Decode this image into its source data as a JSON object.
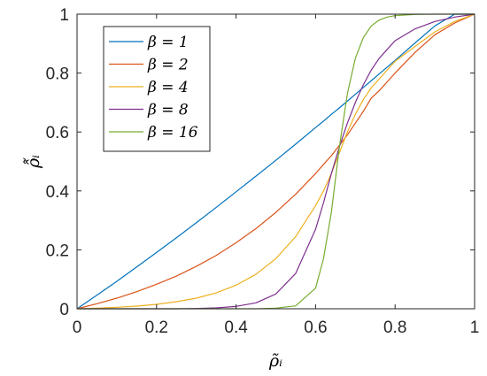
{
  "chart_data": {
    "type": "line",
    "xlabel": "ρ̃ᵢ",
    "ylabel": "ρ̂̃ᵢ",
    "xlim": [
      0,
      1
    ],
    "ylim": [
      0,
      1
    ],
    "xticks": [
      0,
      0.2,
      0.4,
      0.6,
      0.8,
      1
    ],
    "yticks": [
      0,
      0.2,
      0.4,
      0.6,
      0.8,
      1
    ],
    "xtick_labels": [
      "0",
      "0.2",
      "0.4",
      "0.6",
      "0.8",
      "1"
    ],
    "ytick_labels": [
      "0",
      "0.2",
      "0.4",
      "0.6",
      "0.8",
      "1"
    ],
    "grid": false,
    "legend_position": "top-left",
    "x": [
      0,
      0.05,
      0.1,
      0.15,
      0.2,
      0.25,
      0.3,
      0.35,
      0.4,
      0.45,
      0.5,
      0.55,
      0.6,
      0.62,
      0.64,
      0.66,
      0.68,
      0.7,
      0.72,
      0.74,
      0.76,
      0.78,
      0.8,
      0.85,
      0.9,
      0.95,
      1
    ],
    "series": [
      {
        "name": "β = 1",
        "color": "#0072BD",
        "values": [
          0,
          0.046,
          0.093,
          0.142,
          0.191,
          0.241,
          0.292,
          0.344,
          0.397,
          0.45,
          0.504,
          0.559,
          0.615,
          0.637,
          0.66,
          0.682,
          0.705,
          0.728,
          0.751,
          0.774,
          0.797,
          0.82,
          0.843,
          0.902,
          0.96,
          1.0,
          1.0
        ]
      },
      {
        "name": "β = 2",
        "color": "#D95319",
        "values": [
          0,
          0.017,
          0.036,
          0.058,
          0.083,
          0.111,
          0.144,
          0.181,
          0.224,
          0.272,
          0.327,
          0.389,
          0.459,
          0.49,
          0.52,
          0.555,
          0.59,
          0.63,
          0.67,
          0.715,
          0.74,
          0.77,
          0.8,
          0.87,
          0.93,
          0.97,
          1.0
        ]
      },
      {
        "name": "β = 4",
        "color": "#EDB120",
        "values": [
          0,
          0.002,
          0.005,
          0.009,
          0.015,
          0.024,
          0.036,
          0.054,
          0.08,
          0.117,
          0.17,
          0.245,
          0.35,
          0.4,
          0.46,
          0.53,
          0.6,
          0.66,
          0.71,
          0.75,
          0.78,
          0.81,
          0.84,
          0.89,
          0.94,
          0.975,
          1.0
        ]
      },
      {
        "name": "β = 8",
        "color": "#7E2F8E",
        "values": [
          0,
          0,
          0,
          0,
          0,
          0,
          0.001,
          0.003,
          0.008,
          0.02,
          0.05,
          0.12,
          0.27,
          0.36,
          0.46,
          0.55,
          0.63,
          0.7,
          0.76,
          0.81,
          0.85,
          0.88,
          0.91,
          0.95,
          0.975,
          0.99,
          1.0
        ]
      },
      {
        "name": "β = 16",
        "color": "#77AC30",
        "values": [
          0,
          0,
          0,
          0,
          0,
          0,
          0,
          0,
          0,
          0,
          0.002,
          0.01,
          0.07,
          0.17,
          0.33,
          0.55,
          0.73,
          0.85,
          0.92,
          0.96,
          0.98,
          0.99,
          0.995,
          0.999,
          1.0,
          1.0,
          1.0
        ]
      }
    ]
  }
}
